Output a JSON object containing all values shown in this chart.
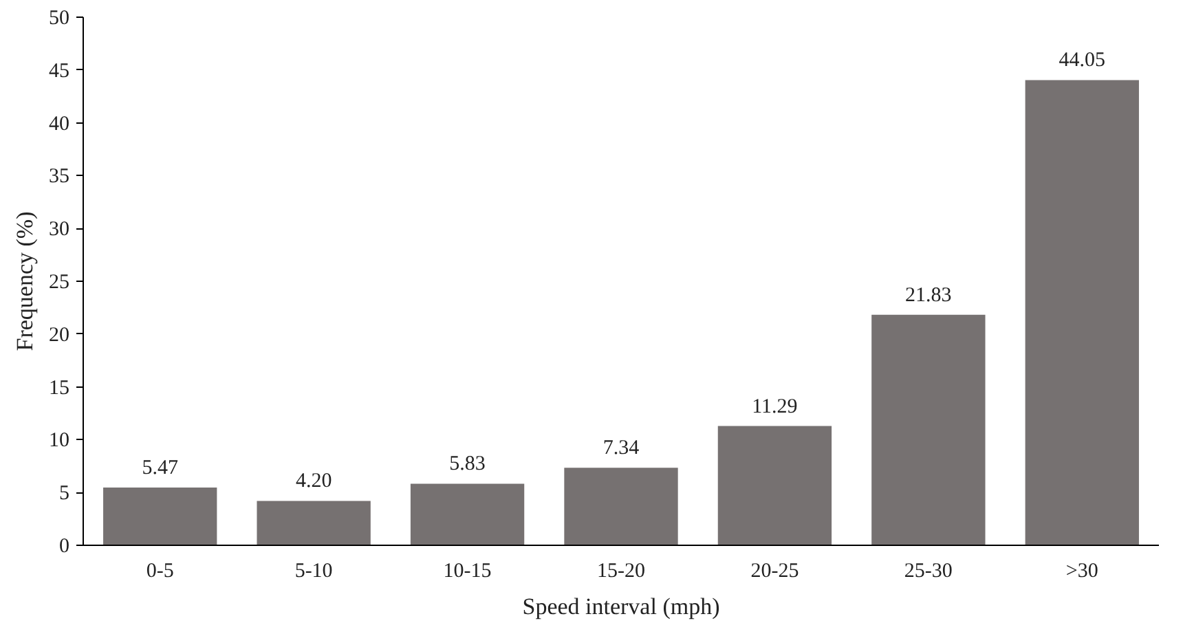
{
  "chart_data": {
    "type": "bar",
    "xlabel": "Speed interval (mph)",
    "ylabel": "Frequency (%)",
    "categories": [
      "0-5",
      "5-10",
      "10-15",
      "15-20",
      "20-25",
      "25-30",
      ">30"
    ],
    "values": [
      5.47,
      4.2,
      5.83,
      7.34,
      11.29,
      21.83,
      44.05
    ],
    "value_labels": [
      "5.47",
      "4.20",
      "5.83",
      "7.34",
      "11.29",
      "21.83",
      "44.05"
    ],
    "color": "#767171",
    "ylim": [
      0,
      50
    ],
    "yticks": [
      0,
      5,
      10,
      15,
      20,
      25,
      30,
      35,
      40,
      45,
      50
    ]
  }
}
